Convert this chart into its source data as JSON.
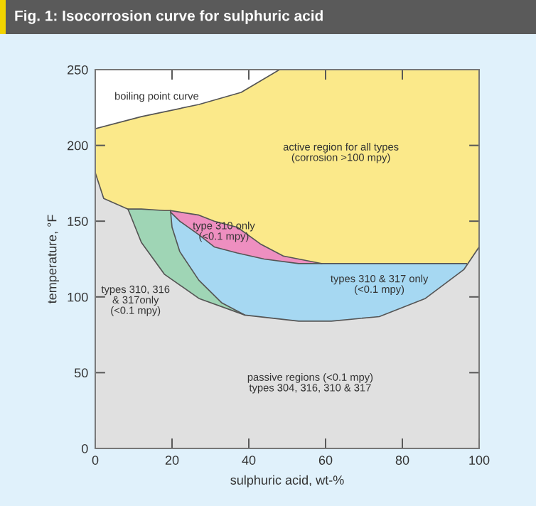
{
  "chart_data": {
    "type": "area",
    "title": "Fig. 1: Isocorrosion curve for sulphuric acid",
    "xlabel": "sulphuric acid, wt-%",
    "ylabel": "temperature, °F",
    "xlim": [
      0,
      100
    ],
    "ylim": [
      0,
      250
    ],
    "xticks": [
      0,
      20,
      40,
      60,
      80,
      100
    ],
    "yticks": [
      0,
      50,
      100,
      150,
      200,
      250
    ],
    "grid": false,
    "legend": false,
    "series": [
      {
        "color": "#fbe98a",
        "x": [
          0,
          12,
          27,
          38,
          48,
          100
        ],
        "values": [
          211,
          219,
          227,
          235,
          250,
          250
        ]
      },
      {
        "color": "#ee8fc0",
        "x": [
          19.6,
          27,
          31,
          37,
          43,
          49,
          53,
          59
        ],
        "values": [
          157,
          154,
          150,
          146,
          135,
          127,
          125,
          122
        ]
      },
      {
        "color": "#a6d8f2",
        "x": [
          19.6,
          22,
          27,
          31,
          37,
          44,
          53,
          59,
          74,
          86,
          96.7
        ],
        "values": [
          156,
          150,
          141,
          133,
          129,
          125,
          122,
          122,
          122,
          122,
          122
        ]
      },
      {
        "color": "#9fd5b5",
        "x": [
          8.5,
          12,
          18,
          19.6,
          20,
          22,
          27,
          33,
          39
        ],
        "values": [
          158,
          158,
          157,
          157,
          146,
          130,
          111,
          96,
          88
        ]
      },
      {
        "color": "#e0e0e0",
        "x": [
          0,
          2.2,
          8.5,
          9,
          12,
          18,
          27,
          39,
          53,
          61.5,
          74,
          86,
          96,
          100
        ],
        "values": [
          182,
          165,
          158,
          155,
          136,
          115,
          99,
          88,
          84,
          84,
          87,
          99,
          118,
          133
        ]
      }
    ],
    "annotations": [
      "boiling point curve",
      "active region for all types\n(corrosion >100 mpy)",
      "type 310 only\n(<0.1 mpy)",
      "types 310 & 317 only\n(<0.1 mpy)",
      "types 310, 316\n& 317only\n(<0.1 mpy)",
      "passive regions (<0.1 mpy)\ntypes 304, 316, 310 & 317"
    ]
  }
}
